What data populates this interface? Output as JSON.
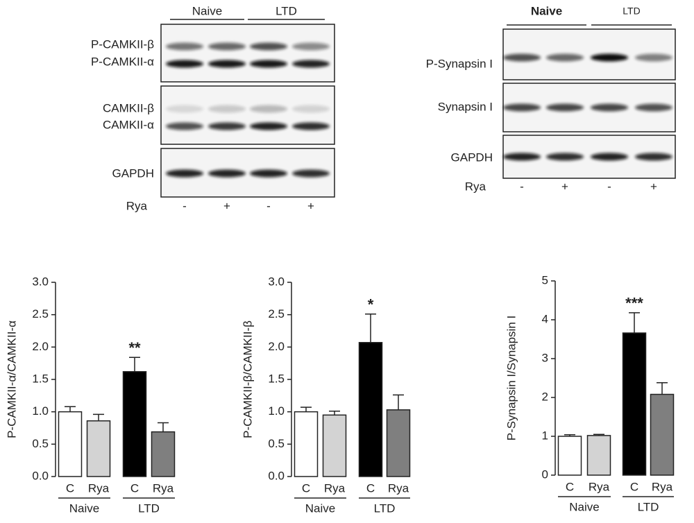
{
  "blots": {
    "left": {
      "groups": [
        "Naive",
        "LTD"
      ],
      "labels": [
        "P-CAMKII-β",
        "P-CAMKII-α",
        "CAMKII-β",
        "CAMKII-α",
        "GAPDH"
      ],
      "treatment": "Rya",
      "lanes": [
        "-",
        "+",
        "-",
        "+"
      ]
    },
    "right": {
      "groups": [
        "Naive",
        "LTD"
      ],
      "labels": [
        "P-Synapsin I",
        "Synapsin I",
        "GAPDH"
      ],
      "treatment": "Rya",
      "lanes": [
        "-",
        "+",
        "-",
        "+"
      ]
    }
  },
  "chart_data": [
    {
      "type": "bar",
      "y_label": "P-CAMKII-α/CAMKII-α",
      "categories": [
        "C",
        "Rya",
        "C",
        "Rya"
      ],
      "groups": [
        "Naive",
        "LTD"
      ],
      "values": [
        1.0,
        0.86,
        1.62,
        0.69
      ],
      "errors": [
        0.08,
        0.1,
        0.22,
        0.14
      ],
      "significance": [
        null,
        null,
        "**",
        null
      ],
      "colors": [
        "#ffffff",
        "#d3d3d3",
        "#000000",
        "#7f7f7f"
      ],
      "ylim": [
        0,
        3
      ],
      "yticks": [
        {
          "value": 0,
          "label": "0.0"
        },
        0.5,
        {
          "value": 1,
          "label": "1.0"
        },
        1.5,
        {
          "value": 2,
          "label": "2.0"
        },
        2.5,
        {
          "value": 3,
          "label": "3.0"
        }
      ]
    },
    {
      "type": "bar",
      "y_label": "P-CAMKII-β/CAMKII-β",
      "categories": [
        "C",
        "Rya",
        "C",
        "Rya"
      ],
      "groups": [
        "Naive",
        "LTD"
      ],
      "values": [
        1.0,
        0.95,
        2.07,
        1.03
      ],
      "errors": [
        0.07,
        0.06,
        0.44,
        0.23
      ],
      "significance": [
        null,
        null,
        "*",
        null
      ],
      "colors": [
        "#ffffff",
        "#d3d3d3",
        "#000000",
        "#7f7f7f"
      ],
      "ylim": [
        0,
        3
      ],
      "yticks": [
        {
          "value": 0,
          "label": "0.0"
        },
        0.5,
        {
          "value": 1,
          "label": "1.0"
        },
        1.5,
        {
          "value": 2,
          "label": "2.0"
        },
        2.5,
        {
          "value": 3,
          "label": "3.0"
        }
      ]
    },
    {
      "type": "bar",
      "y_label": "P-Synapsin I/Synapsin I",
      "categories": [
        "C",
        "Rya",
        "C",
        "Rya"
      ],
      "groups": [
        "Naive",
        "LTD"
      ],
      "values": [
        1.0,
        1.02,
        3.66,
        2.08
      ],
      "errors": [
        0.04,
        0.03,
        0.52,
        0.3
      ],
      "significance": [
        null,
        null,
        "***",
        null
      ],
      "colors": [
        "#ffffff",
        "#d3d3d3",
        "#000000",
        "#7f7f7f"
      ],
      "ylim": [
        0,
        5
      ],
      "yticks": [
        0,
        1,
        2,
        3,
        4,
        5
      ]
    }
  ]
}
